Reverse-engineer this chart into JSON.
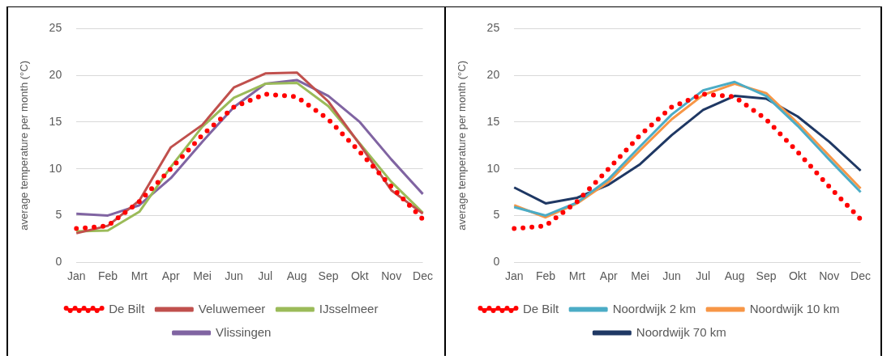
{
  "chart_data": [
    {
      "type": "line",
      "ylabel": "average temperature per month (°C)",
      "categories": [
        "Jan",
        "Feb",
        "Mrt",
        "Apr",
        "Mei",
        "Jun",
        "Jul",
        "Aug",
        "Sep",
        "Okt",
        "Nov",
        "Dec"
      ],
      "ylim": [
        0,
        25
      ],
      "yticks": [
        0,
        5,
        10,
        15,
        20,
        25
      ],
      "grid": "y",
      "legend": "bottom",
      "marker": "none",
      "series": [
        {
          "name": "De Bilt",
          "color": "#ff0000",
          "line_style": "dotted",
          "values": [
            3.6,
            3.9,
            6.5,
            10.0,
            13.6,
            16.6,
            18.0,
            17.7,
            15.3,
            11.8,
            8.1,
            4.6
          ]
        },
        {
          "name": "Veluwemeer",
          "color": "#c0504d",
          "line_style": "solid",
          "values": [
            3.1,
            3.9,
            6.6,
            12.3,
            14.7,
            18.7,
            20.2,
            20.3,
            17.2,
            12.6,
            7.7,
            5.2
          ]
        },
        {
          "name": "IJsselmeer",
          "color": "#9bbb59",
          "line_style": "solid",
          "values": [
            3.3,
            3.4,
            5.4,
            10.2,
            14.5,
            17.6,
            19.1,
            19.2,
            16.7,
            12.7,
            8.6,
            5.3
          ]
        },
        {
          "name": "Vlissingen",
          "color": "#8064a2",
          "line_style": "solid",
          "values": [
            5.2,
            5.0,
            6.1,
            9.0,
            12.9,
            16.6,
            19.1,
            19.5,
            17.8,
            15.0,
            11.0,
            7.3
          ]
        }
      ]
    },
    {
      "type": "line",
      "ylabel": "average temperature per month (°C)",
      "categories": [
        "Jan",
        "Feb",
        "Mrt",
        "Apr",
        "Mei",
        "Jun",
        "Jul",
        "Aug",
        "Sep",
        "Okt",
        "Nov",
        "Dec"
      ],
      "ylim": [
        0,
        25
      ],
      "yticks": [
        0,
        5,
        10,
        15,
        20,
        25
      ],
      "grid": "y",
      "legend": "bottom",
      "marker": "none",
      "series": [
        {
          "name": "De Bilt",
          "color": "#ff0000",
          "line_style": "dotted",
          "values": [
            3.6,
            3.9,
            6.5,
            10.0,
            13.6,
            16.6,
            18.0,
            17.7,
            15.3,
            11.8,
            8.1,
            4.6
          ]
        },
        {
          "name": "Noordwijk 2 km",
          "color": "#4bacc6",
          "line_style": "solid",
          "values": [
            5.9,
            5.0,
            6.4,
            8.9,
            12.4,
            15.8,
            18.4,
            19.3,
            17.8,
            14.6,
            11.0,
            7.5
          ]
        },
        {
          "name": "Noordwijk 10 km",
          "color": "#f79646",
          "line_style": "solid",
          "values": [
            6.1,
            4.8,
            6.3,
            8.6,
            12.0,
            15.3,
            17.9,
            19.1,
            18.1,
            14.9,
            11.4,
            7.9
          ]
        },
        {
          "name": "Noordwijk 70 km",
          "color": "#1f3864",
          "line_style": "solid",
          "values": [
            8.0,
            6.3,
            6.9,
            8.3,
            10.5,
            13.6,
            16.3,
            17.8,
            17.5,
            15.6,
            12.9,
            9.8
          ]
        }
      ]
    }
  ]
}
